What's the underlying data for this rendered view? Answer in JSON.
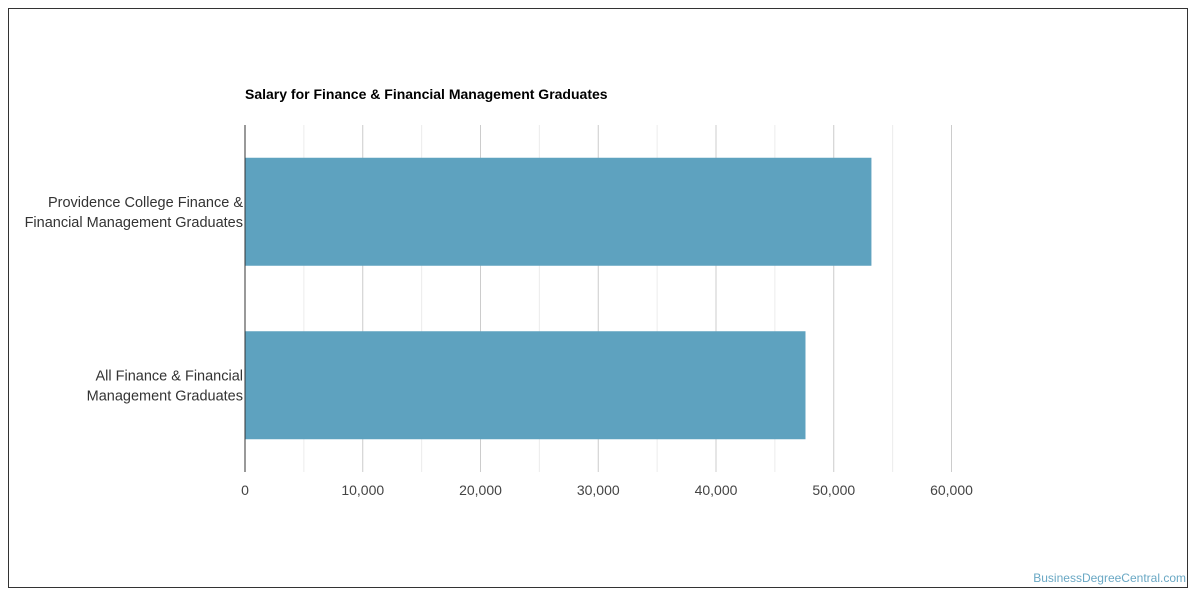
{
  "chart_data": {
    "type": "bar",
    "orientation": "horizontal",
    "title": "Salary for Finance & Financial Management Graduates",
    "categories": [
      [
        "Providence College Finance &",
        "Financial Management Graduates"
      ],
      [
        "All Finance & Financial",
        "Management Graduates"
      ]
    ],
    "values": [
      53200,
      47600
    ],
    "xlim": [
      0,
      60000
    ],
    "ticks": [
      0,
      10000,
      20000,
      30000,
      40000,
      50000,
      60000
    ],
    "tick_labels": [
      "0",
      "10,000",
      "20,000",
      "30,000",
      "40,000",
      "50,000",
      "60,000"
    ],
    "bar_color": "#5ea2bf",
    "grid": true
  },
  "watermark": "BusinessDegreeCentral.com"
}
